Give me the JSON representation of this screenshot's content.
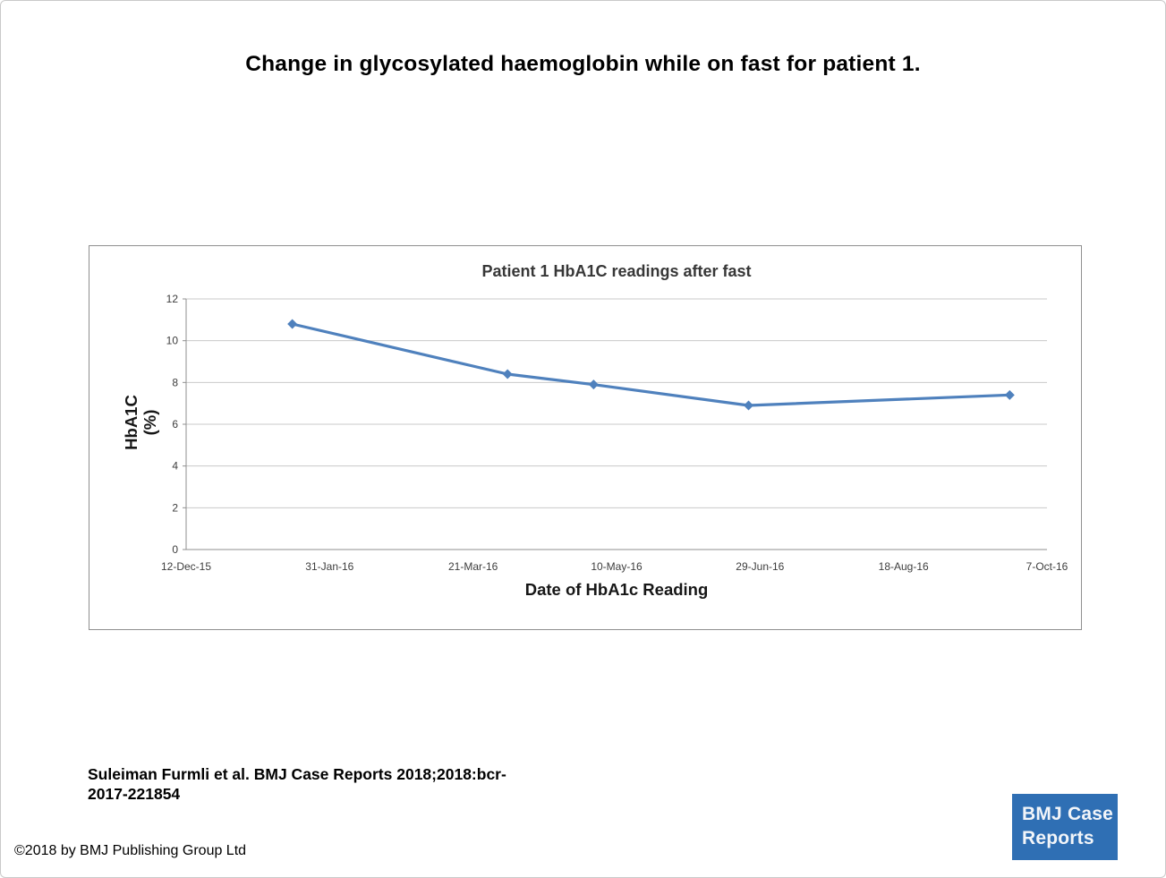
{
  "page": {
    "title": "Change in glycosylated haemoglobin while on fast for patient 1.",
    "citation_lines": [
      "Suleiman Furmli et al. BMJ Case Reports 2018;2018:bcr-",
      "2017-221854"
    ],
    "copyright": "©2018 by BMJ Publishing Group Ltd",
    "logo": {
      "lines": [
        "BMJ Case",
        "Reports"
      ],
      "bg_color": "#2f6fb4",
      "text_color": "#f2f5f9"
    }
  },
  "chart_data": {
    "type": "line",
    "title": "Patient 1 HbA1C readings after fast",
    "xlabel": "Date of HbA1c Reading",
    "ylabel_lines": [
      "HbA1C",
      "(%)"
    ],
    "x_tick_labels": [
      "12-Dec-15",
      "31-Jan-16",
      "21-Mar-16",
      "10-May-16",
      "29-Jun-16",
      "18-Aug-16",
      "7-Oct-16"
    ],
    "x_tick_interval_days": 50,
    "xlim_days": [
      0,
      300
    ],
    "y_ticks": [
      0,
      2,
      4,
      6,
      8,
      10,
      12
    ],
    "ylim": [
      0,
      12
    ],
    "grid": "horizontal",
    "legend": "none",
    "series": [
      {
        "name": "HbA1C (%)",
        "color": "#4f81bd",
        "marker": "diamond",
        "points": [
          {
            "x_days": 37,
            "approx_date": "18-Jan-16",
            "y": 10.8
          },
          {
            "x_days": 112,
            "approx_date": "1-Apr-16",
            "y": 8.4
          },
          {
            "x_days": 142,
            "approx_date": "2-May-16",
            "y": 7.9
          },
          {
            "x_days": 196,
            "approx_date": "25-Jun-16",
            "y": 6.9
          },
          {
            "x_days": 287,
            "approx_date": "24-Sep-16",
            "y": 7.4
          }
        ]
      }
    ],
    "colors": {
      "gridline": "#c9c9c9",
      "axis_line": "#8f8f8f"
    }
  }
}
